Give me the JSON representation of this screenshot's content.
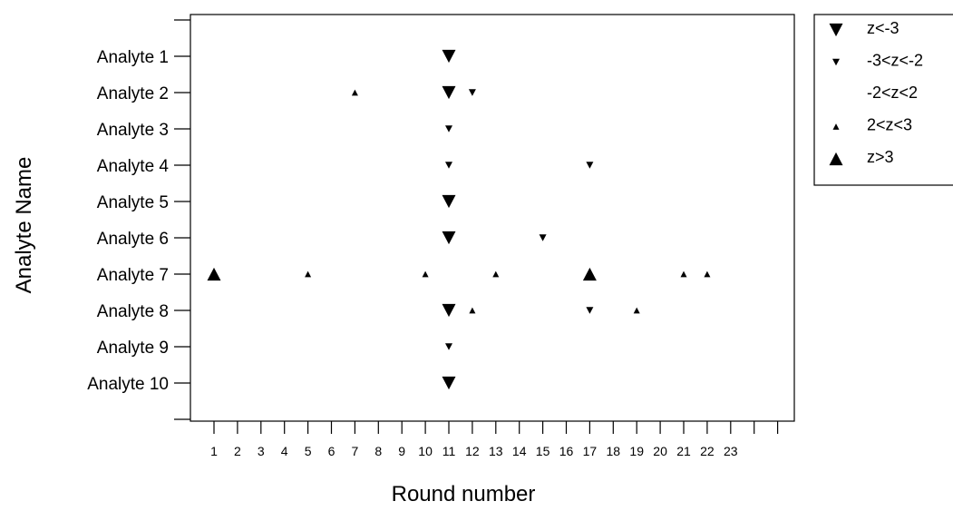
{
  "chart_data": {
    "type": "scatter",
    "title": "",
    "xlabel": "Round number",
    "ylabel": "Analyte Name",
    "xlim": [
      0.2,
      24.5
    ],
    "x_ticks": [
      "1",
      "2",
      "3",
      "4",
      "5",
      "6",
      "7",
      "8",
      "9",
      "10",
      "11",
      "12",
      "13",
      "14",
      "15",
      "16",
      "17",
      "18",
      "19",
      "20",
      "21",
      "22",
      "23",
      "",
      ""
    ],
    "categories": [
      "Analyte 1",
      "Analyte 2",
      "Analyte 3",
      "Analyte 4",
      "Analyte 5",
      "Analyte 6",
      "Analyte 7",
      "Analyte 8",
      "Analyte 9",
      "Analyte 10"
    ],
    "legend_position": "outside-right-top",
    "grid": false,
    "legend": [
      {
        "key": "big_down",
        "label": "z<-3"
      },
      {
        "key": "small_down",
        "label": "-3<z<-2"
      },
      {
        "key": "none",
        "label": "-2<z<2"
      },
      {
        "key": "small_up",
        "label": "2<z<3"
      },
      {
        "key": "big_up",
        "label": "z>3"
      }
    ],
    "points": [
      {
        "x": 11,
        "y": "Analyte 1",
        "class": "big_down"
      },
      {
        "x": 7,
        "y": "Analyte 2",
        "class": "small_up"
      },
      {
        "x": 11,
        "y": "Analyte 2",
        "class": "big_down"
      },
      {
        "x": 12,
        "y": "Analyte 2",
        "class": "small_down"
      },
      {
        "x": 11,
        "y": "Analyte 3",
        "class": "small_down"
      },
      {
        "x": 11,
        "y": "Analyte 4",
        "class": "small_down"
      },
      {
        "x": 17,
        "y": "Analyte 4",
        "class": "small_down"
      },
      {
        "x": 11,
        "y": "Analyte 5",
        "class": "big_down"
      },
      {
        "x": 11,
        "y": "Analyte 6",
        "class": "big_down"
      },
      {
        "x": 15,
        "y": "Analyte 6",
        "class": "small_down"
      },
      {
        "x": 1,
        "y": "Analyte 7",
        "class": "big_up"
      },
      {
        "x": 5,
        "y": "Analyte 7",
        "class": "small_up"
      },
      {
        "x": 10,
        "y": "Analyte 7",
        "class": "small_up"
      },
      {
        "x": 13,
        "y": "Analyte 7",
        "class": "small_up"
      },
      {
        "x": 17,
        "y": "Analyte 7",
        "class": "big_up"
      },
      {
        "x": 21,
        "y": "Analyte 7",
        "class": "small_up"
      },
      {
        "x": 22,
        "y": "Analyte 7",
        "class": "small_up"
      },
      {
        "x": 11,
        "y": "Analyte 8",
        "class": "big_down"
      },
      {
        "x": 12,
        "y": "Analyte 8",
        "class": "small_up"
      },
      {
        "x": 17,
        "y": "Analyte 8",
        "class": "small_down"
      },
      {
        "x": 19,
        "y": "Analyte 8",
        "class": "small_up"
      },
      {
        "x": 11,
        "y": "Analyte 9",
        "class": "small_down"
      },
      {
        "x": 11,
        "y": "Analyte 10",
        "class": "big_down"
      }
    ]
  }
}
